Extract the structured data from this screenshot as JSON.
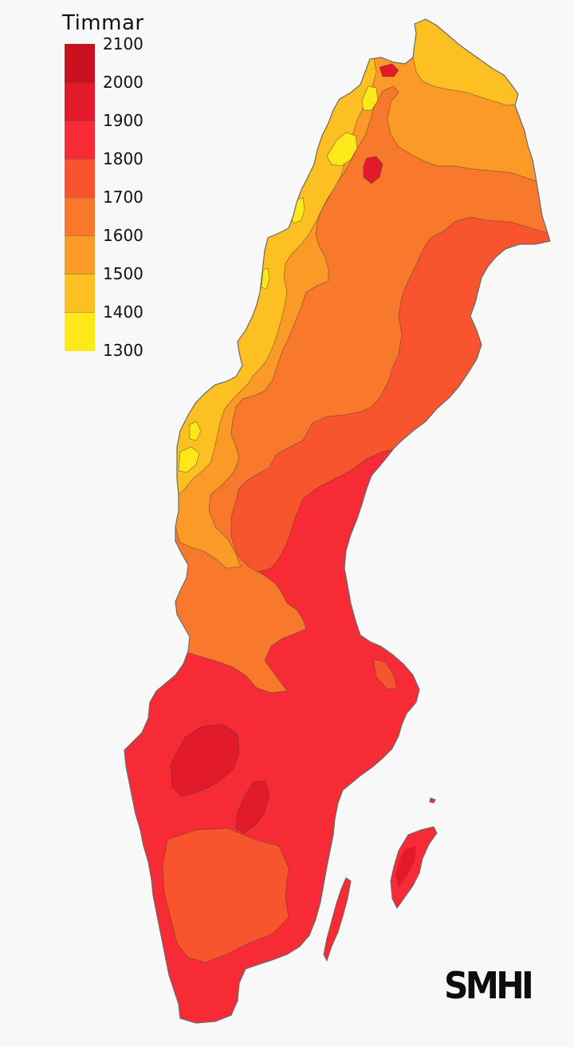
{
  "legend": {
    "title": "Timmar",
    "labels": [
      "2100",
      "2000",
      "1900",
      "1800",
      "1700",
      "1600",
      "1500",
      "1400",
      "1300"
    ],
    "colors": [
      "#c8101e",
      "#e21a2c",
      "#f62b36",
      "#f8552f",
      "#f8782c",
      "#fb9a26",
      "#fcc023",
      "#fde91a"
    ]
  },
  "logo": {
    "text": "SMHI"
  },
  "map": {
    "outline_color": "#6b6b6b",
    "zone_colors": {
      "h1300_1400": "#fde91a",
      "h1400_1500": "#fcc023",
      "h1500_1600": "#fb9a26",
      "h1600_1700": "#f8782c",
      "h1700_1800": "#f8552f",
      "h1800_1900": "#f62b36",
      "h1900_2000": "#e21a2c"
    }
  }
}
